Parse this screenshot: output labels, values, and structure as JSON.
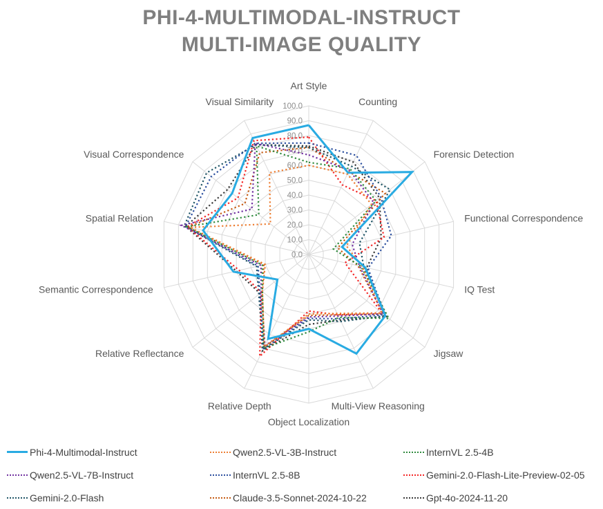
{
  "title": {
    "line1": "PHI-4-MULTIMODAL-INSTRUCT",
    "line2": "MULTI-IMAGE QUALITY"
  },
  "chart_data": {
    "type": "radar",
    "title": "PHI-4-MULTIMODAL-INSTRUCT MULTI-IMAGE QUALITY",
    "axis_range": [
      0,
      100
    ],
    "axis_ticks": [
      0,
      10,
      20,
      30,
      40,
      50,
      60,
      70,
      80,
      90,
      100
    ],
    "grid": true,
    "legend_position": "bottom",
    "grid_color": "#d9d9d9",
    "tick_label_color": "#8c8c8c",
    "axis_label_color": "#595959",
    "categories": [
      "Art Style",
      "Counting",
      "Forensic Detection",
      "Functional Correspondence",
      "IQ Test",
      "Jigsaw",
      "Multi-View Reasoning",
      "Object Localization",
      "Relative Depth",
      "Relative Reflectance",
      "Semantic Correspondence",
      "Spatial Relation",
      "Visual Correspondence",
      "Visual Similarity"
    ],
    "series": [
      {
        "name": "Phi-4-Multimodal-Instruct",
        "color": "#29abe2",
        "dash": false,
        "values": [
          87,
          61,
          89,
          23,
          39,
          66,
          74,
          50,
          63,
          27,
          52,
          73,
          66,
          87
        ]
      },
      {
        "name": "Qwen2.5-VL-3B-Instruct",
        "color": "#ed7d31",
        "dash": true,
        "values": [
          60,
          60,
          54,
          26,
          37,
          63,
          44,
          40,
          69,
          40,
          30,
          82,
          33,
          61
        ]
      },
      {
        "name": "InternVL 2.5-4B",
        "color": "#2f8a3d",
        "dash": true,
        "values": [
          62,
          64,
          58,
          17,
          36,
          69,
          47,
          52,
          70,
          40,
          32,
          84,
          43,
          81
        ]
      },
      {
        "name": "Qwen2.5-VL-7B-Instruct",
        "color": "#7030a0",
        "dash": true,
        "values": [
          67,
          63,
          56,
          30,
          35,
          64,
          46,
          42,
          68,
          41,
          33,
          88,
          49,
          83
        ]
      },
      {
        "name": "InternVL 2.5-8B",
        "color": "#2a4e9e",
        "dash": true,
        "values": [
          75,
          74,
          62,
          57,
          41,
          65,
          48,
          43,
          70,
          42,
          35,
          85,
          84,
          83
        ]
      },
      {
        "name": "Gemini-2.0-Flash-Lite-Preview-02-05",
        "color": "#f42525",
        "dash": true,
        "values": [
          79,
          52,
          58,
          52,
          25,
          63,
          45,
          38,
          76,
          41,
          48,
          84,
          61,
          85
        ]
      },
      {
        "name": "Gemini-2.0-Flash",
        "color": "#1f5566",
        "dash": true,
        "values": [
          72,
          66,
          70,
          35,
          38,
          66,
          50,
          44,
          71,
          43,
          36,
          86,
          88,
          82
        ]
      },
      {
        "name": "Claude-3.5-Sonnet-2024-10-22",
        "color": "#c55a11",
        "dash": true,
        "values": [
          72,
          62,
          66,
          20,
          34,
          64,
          45,
          41,
          69,
          40,
          31,
          83,
          55,
          76
        ]
      },
      {
        "name": "Gpt-4o-2024-11-20",
        "color": "#3b3b3b",
        "dash": true,
        "values": [
          73,
          69,
          61,
          50,
          40,
          67,
          49,
          47,
          72,
          42,
          50,
          85,
          70,
          82
        ]
      }
    ]
  }
}
